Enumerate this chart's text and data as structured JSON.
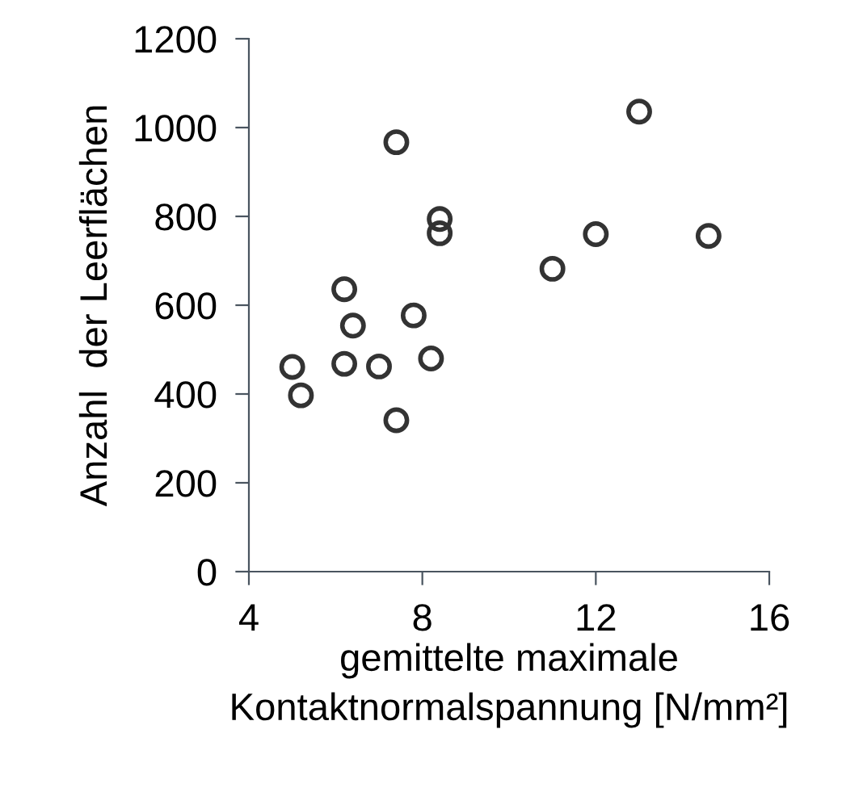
{
  "chart_data": {
    "type": "scatter",
    "xlabel": "gemittelte maximale\nKontaktnormalspannung [N/mm²]",
    "ylabel": "Anzahl  der Leerflächen",
    "x": [
      5.0,
      5.2,
      6.2,
      6.2,
      6.4,
      7.0,
      7.4,
      7.4,
      7.8,
      8.2,
      8.4,
      8.4,
      11.0,
      12.0,
      13.0,
      14.6
    ],
    "values": [
      461,
      397,
      636,
      468,
      554,
      462,
      967,
      341,
      577,
      480,
      794,
      762,
      682,
      760,
      1036,
      756
    ],
    "color": "#333333",
    "marker": "circle",
    "xlim": [
      4,
      16
    ],
    "xticks": [
      4,
      8,
      12,
      16
    ],
    "ylim": [
      0,
      1200
    ],
    "yticks": [
      0,
      200,
      400,
      600,
      800,
      1000,
      1200
    ],
    "grid": false,
    "legend": false
  }
}
